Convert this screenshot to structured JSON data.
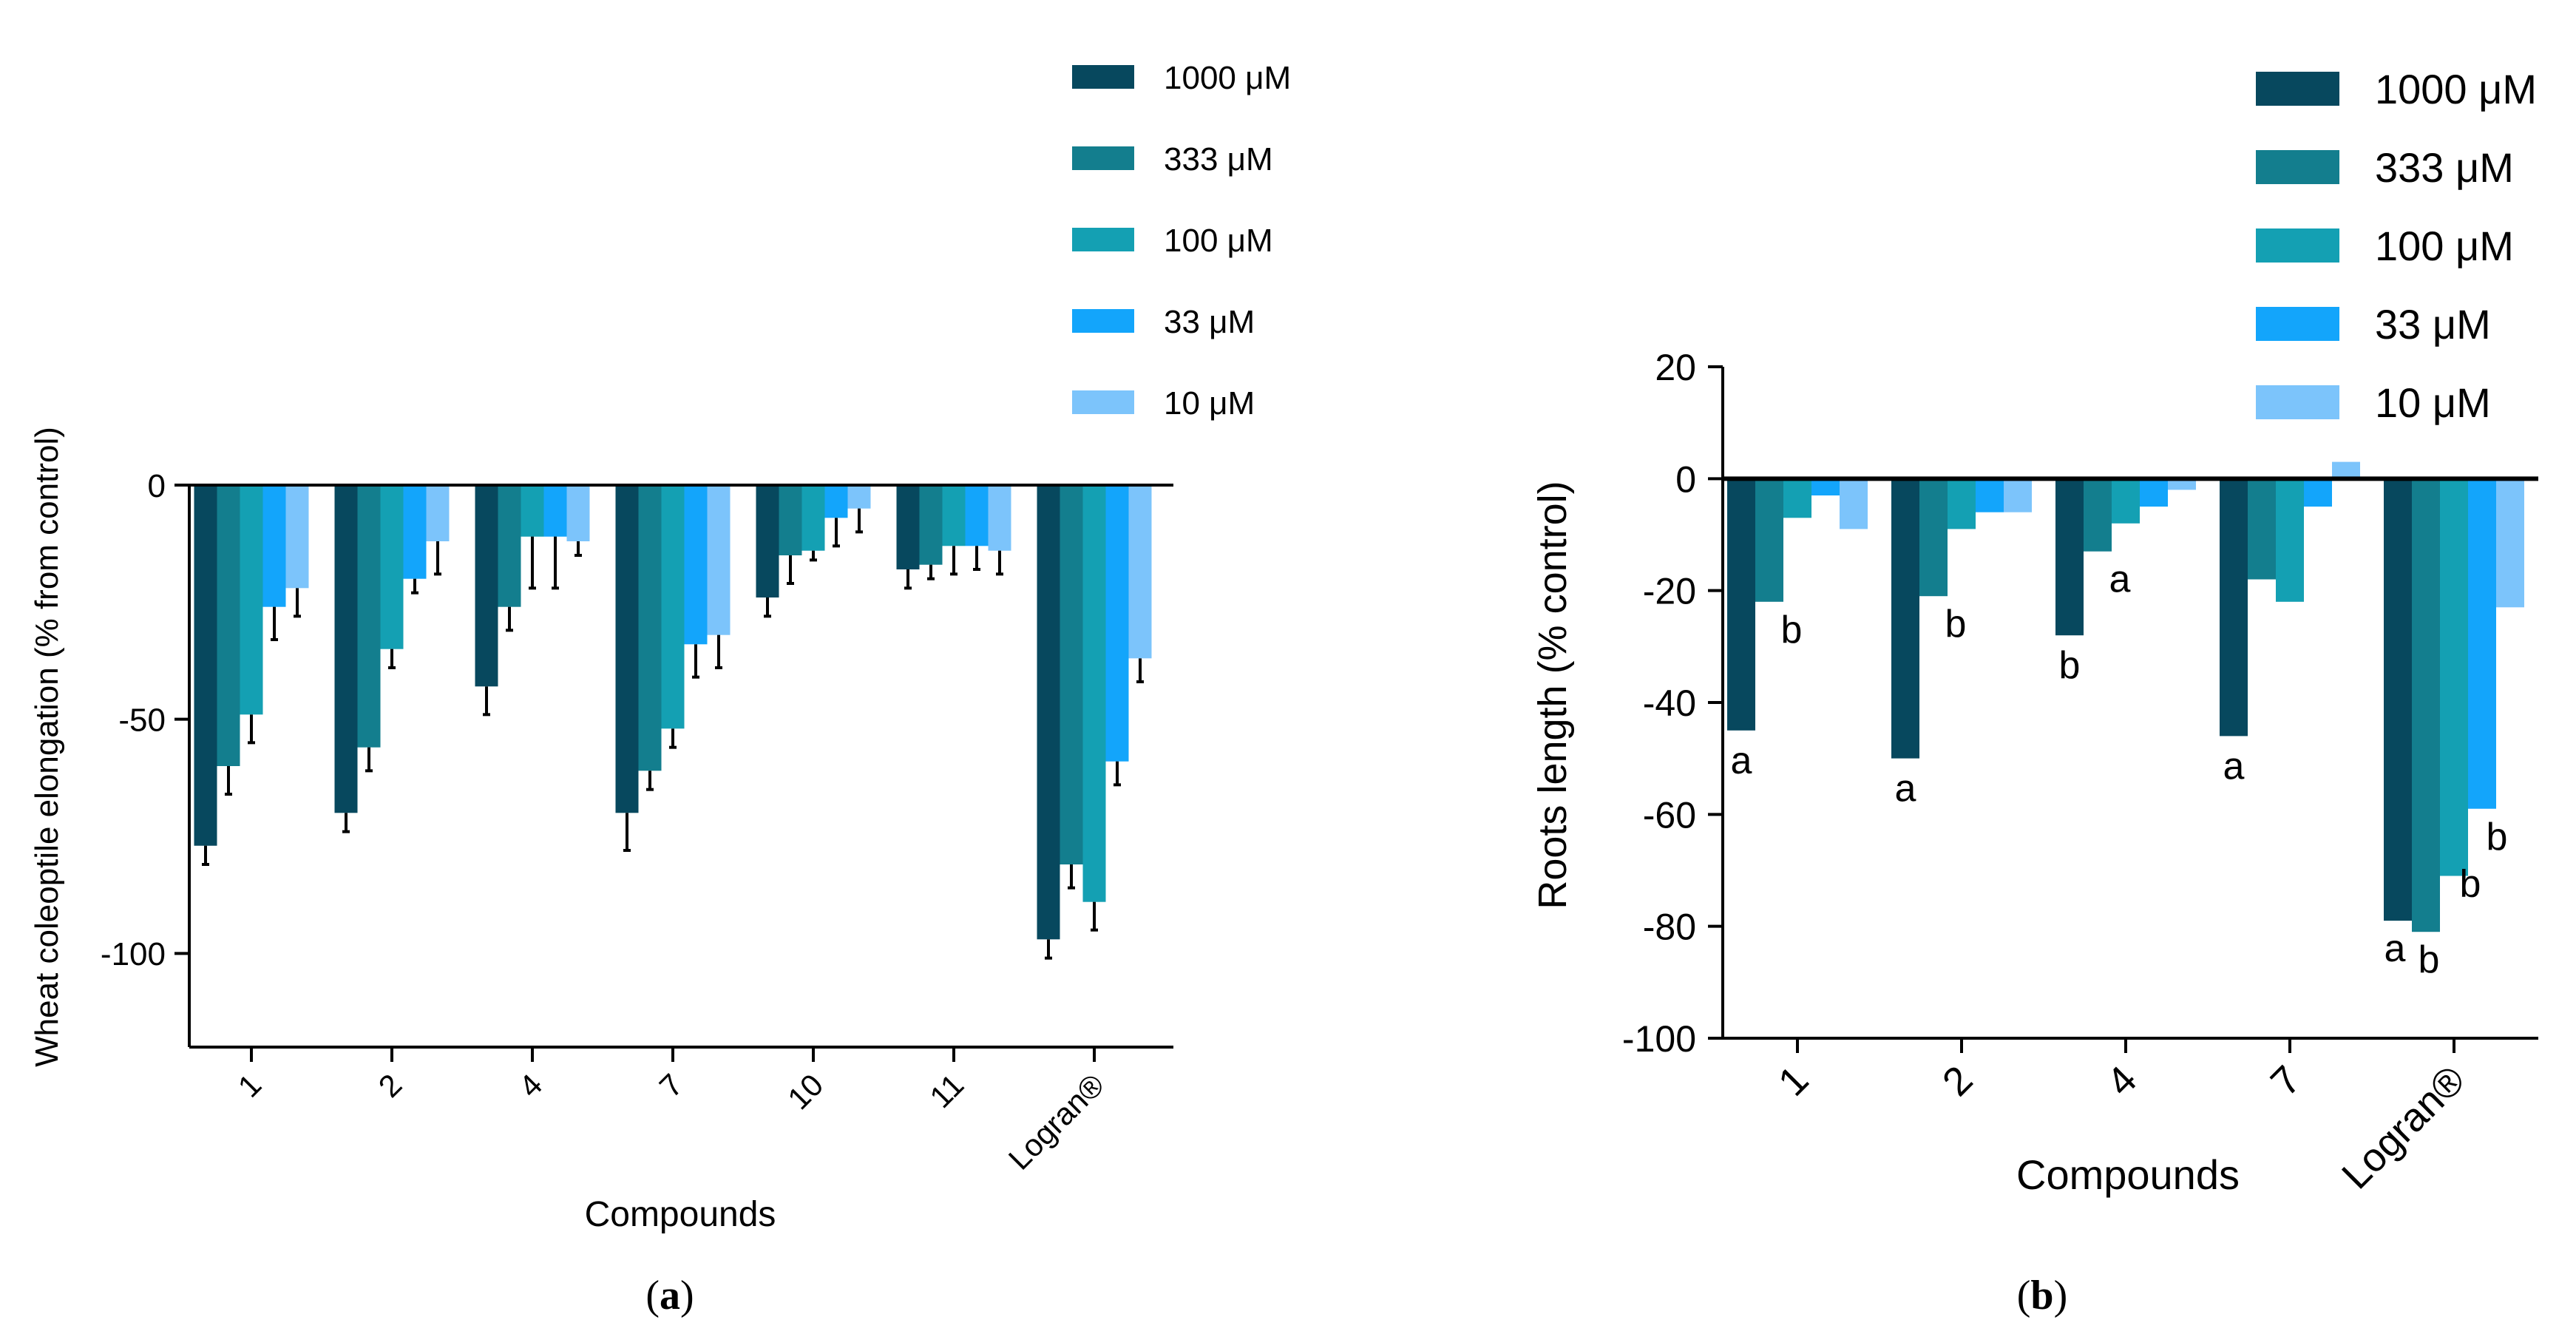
{
  "colors": {
    "1000 μM": "#07485e",
    "333 μM": "#137e8e",
    "100 μM": "#14a0b3",
    "33 μM": "#13a5fb",
    "10 μM": "#7cc4fb",
    "axis": "#000000"
  },
  "chart_data": [
    {
      "type": "bar",
      "panel_label": "(a)",
      "panel_letter": "a",
      "ylabel": "Wheat coleoptile elongation (% from control)",
      "xlabel": "Compounds",
      "ylim": [
        -120,
        0
      ],
      "yticks": [
        0,
        -50,
        -100
      ],
      "categories": [
        "1",
        "2",
        "4",
        "7",
        "10",
        "11",
        "Logran®"
      ],
      "legend": [
        "1000 μM",
        "333 μM",
        "100 μM",
        "33 μM",
        "10 μM"
      ],
      "series": [
        {
          "name": "1000 μM",
          "values": [
            -77,
            -70,
            -43,
            -70,
            -24,
            -18,
            -97
          ],
          "errors": [
            4,
            4,
            6,
            8,
            4,
            4,
            4
          ]
        },
        {
          "name": "333 μM",
          "values": [
            -60,
            -56,
            -26,
            -61,
            -15,
            -17,
            -81
          ],
          "errors": [
            6,
            5,
            5,
            4,
            6,
            3,
            5
          ]
        },
        {
          "name": "100 μM",
          "values": [
            -49,
            -35,
            -11,
            -52,
            -14,
            -13,
            -89
          ],
          "errors": [
            6,
            4,
            11,
            4,
            2,
            6,
            6
          ]
        },
        {
          "name": "33 μM",
          "values": [
            -26,
            -20,
            -11,
            -34,
            -7,
            -13,
            -59
          ],
          "errors": [
            7,
            3,
            11,
            7,
            6,
            5,
            5
          ]
        },
        {
          "name": "10 μM",
          "values": [
            -22,
            -12,
            -12,
            -32,
            -5,
            -14,
            -37
          ],
          "errors": [
            6,
            7,
            3,
            7,
            5,
            5,
            5
          ]
        }
      ]
    },
    {
      "type": "bar",
      "panel_label": "(b)",
      "panel_letter": "b",
      "ylabel": "Roots length (% control)",
      "xlabel": "Compounds",
      "ylim": [
        -100,
        20
      ],
      "yticks": [
        20,
        0,
        -20,
        -40,
        -60,
        -80,
        -100
      ],
      "categories": [
        "1",
        "2",
        "4",
        "7",
        "Logran®"
      ],
      "legend": [
        "1000 μM",
        "333 μM",
        "100 μM",
        "33 μM",
        "10 μM"
      ],
      "series": [
        {
          "name": "1000 μM",
          "values": [
            -45,
            -50,
            -28,
            -46,
            -79
          ],
          "labels": [
            "a",
            "a",
            "b",
            "a",
            "a"
          ]
        },
        {
          "name": "333 μM",
          "values": [
            -22,
            -21,
            -13,
            -18,
            -81
          ],
          "labels": [
            "b",
            "b",
            "a",
            "",
            "b"
          ]
        },
        {
          "name": "100 μM",
          "values": [
            -7,
            -9,
            -8,
            -22,
            -71
          ],
          "labels": [
            "",
            "",
            "",
            "",
            "b"
          ]
        },
        {
          "name": "33 μM",
          "values": [
            -3,
            -6,
            -5,
            -5,
            -59
          ],
          "labels": [
            "",
            "",
            "",
            "",
            "b"
          ]
        },
        {
          "name": "10 μM",
          "values": [
            -9,
            -6,
            -2,
            3,
            -23
          ],
          "labels": [
            "",
            "",
            "",
            "",
            ""
          ]
        }
      ]
    }
  ]
}
